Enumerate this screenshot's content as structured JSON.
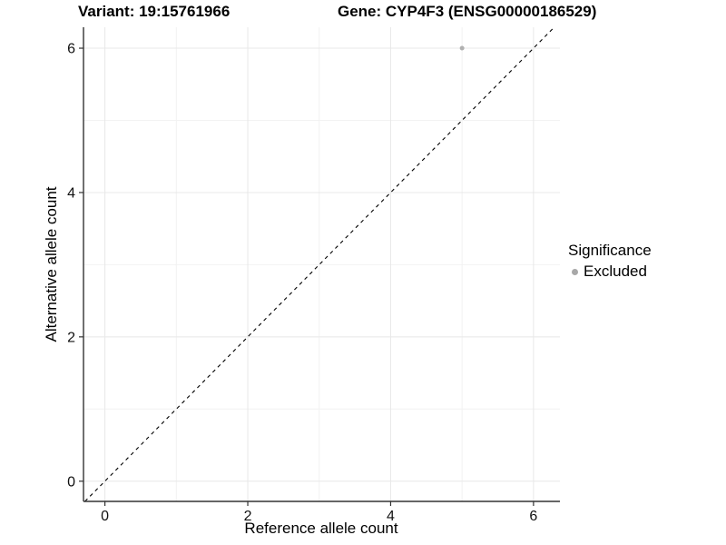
{
  "figure": {
    "title_left": "Variant: 19:15761966",
    "title_right": "Gene: CYP4F3 (ENSG00000186529)"
  },
  "chart_data": {
    "type": "scatter",
    "title": "Variant: 19:15761966   Gene: CYP4F3 (ENSG00000186529)",
    "xlabel": "Reference allele count",
    "ylabel": "Alternative allele count",
    "xlim": [
      -0.3,
      6.37
    ],
    "ylim": [
      -0.28,
      6.29
    ],
    "x_ticks": [
      0,
      2,
      4,
      6
    ],
    "y_ticks": [
      0,
      2,
      4,
      6
    ],
    "x_minor_ticks": [
      1,
      3,
      5
    ],
    "y_minor_ticks": [
      1,
      3,
      5
    ],
    "grid": true,
    "series": [
      {
        "name": "Excluded",
        "points": [
          {
            "x": 5,
            "y": 6
          }
        ],
        "color": "#b0b0b0",
        "point_radius": 2.5
      }
    ],
    "reference_line": {
      "type": "identity",
      "style": "dashed",
      "from": -0.28,
      "to": 6.29,
      "color": "#000000"
    },
    "legend": {
      "title": "Significance",
      "position": "right",
      "items": [
        {
          "label": "Excluded",
          "color": "#a8a8a8"
        }
      ]
    }
  },
  "colors": {
    "background": "#ffffff",
    "grid_major": "#e8e8e8",
    "grid_minor": "#f2f2f2",
    "axis_line": "#333333",
    "tick": "#333333",
    "text": "#000000"
  }
}
